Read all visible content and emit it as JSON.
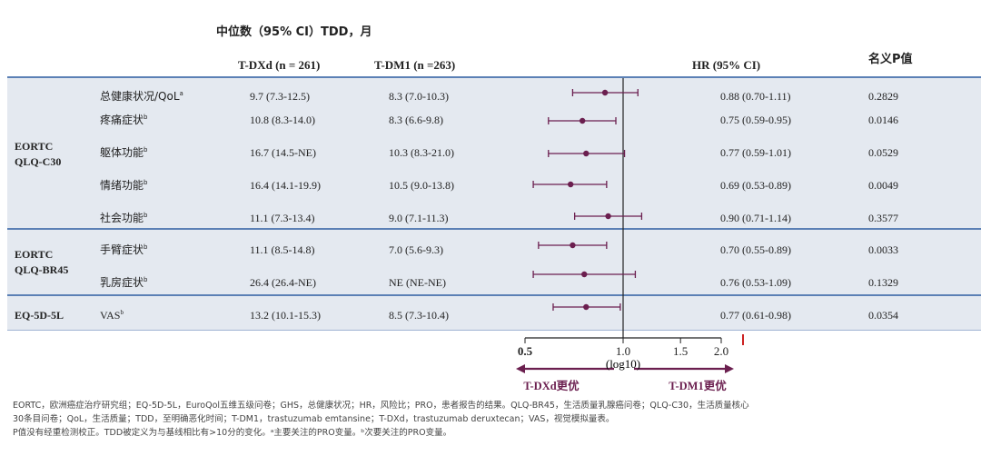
{
  "title": "中位数（95% CI）TDD，月",
  "columns": {
    "tdxd": "T-DXd (n = 261)",
    "tdm1": "T-DM1 (n =263)",
    "hr": "HR (95% CI)",
    "p": "名义P值"
  },
  "sections": [
    {
      "name_line1": "EORTC",
      "name_line2": "QLQ-C30"
    },
    {
      "name_line1": "EORTC",
      "name_line2": "QLQ-BR45"
    },
    {
      "name_line1": "EQ-5D-5L",
      "name_line2": ""
    }
  ],
  "rows": [
    {
      "label": "总健康状况/QoL",
      "sup": "a",
      "tdxd": "9.7 (7.3-12.5)",
      "tdm1": "8.3 (7.0-10.3)",
      "hr_text": "0.88 (0.70-1.11)",
      "p": "0.2829"
    },
    {
      "label": "疼痛症状",
      "sup": "b",
      "tdxd": "10.8 (8.3-14.0)",
      "tdm1": "8.3 (6.6-9.8)",
      "hr_text": "0.75 (0.59-0.95)",
      "p": "0.0146"
    },
    {
      "label": "躯体功能",
      "sup": "b",
      "tdxd": "16.7 (14.5-NE)",
      "tdm1": "10.3 (8.3-21.0)",
      "hr_text": "0.77 (0.59-1.01)",
      "p": "0.0529"
    },
    {
      "label": "情绪功能",
      "sup": "b",
      "tdxd": "16.4 (14.1-19.9)",
      "tdm1": "10.5 (9.0-13.8)",
      "hr_text": "0.69 (0.53-0.89)",
      "p": "0.0049"
    },
    {
      "label": "社会功能",
      "sup": "b",
      "tdxd": "11.1 (7.3-13.4)",
      "tdm1": "9.0 (7.1-11.3)",
      "hr_text": "0.90 (0.71-1.14)",
      "p": "0.3577"
    },
    {
      "label": "手臂症状",
      "sup": "b",
      "tdxd": "11.1 (8.5-14.8)",
      "tdm1": "7.0 (5.6-9.3)",
      "hr_text": "0.70 (0.55-0.89)",
      "p": "0.0033"
    },
    {
      "label": "乳房症状",
      "sup": "b",
      "tdxd": "26.4 (26.4-NE)",
      "tdm1": "NE (NE-NE)",
      "hr_text": "0.76 (0.53-1.09)",
      "p": "0.1329"
    },
    {
      "label": "VAS",
      "sup": "b",
      "tdxd": "13.2 (10.1-15.3)",
      "tdm1": "8.5 (7.3-10.4)",
      "hr_text": "0.77 (0.61-0.98)",
      "p": "0.0354"
    }
  ],
  "chart_data": {
    "type": "forest",
    "xscale": "log10",
    "xlim": [
      0.5,
      2.0
    ],
    "reference_line": 1.0,
    "ticks": [
      "0.5",
      "1.0",
      "1.5",
      "2.0"
    ],
    "tick_values": [
      0.5,
      1.0,
      1.5,
      2.0
    ],
    "xlabel": "(log10)",
    "favors_left": "T-DXd更优",
    "favors_right": "T-DM1更优",
    "points": [
      {
        "label": "总健康状况/QoL",
        "hr": 0.88,
        "lo": 0.7,
        "hi": 1.11
      },
      {
        "label": "疼痛症状",
        "hr": 0.75,
        "lo": 0.59,
        "hi": 0.95
      },
      {
        "label": "躯体功能",
        "hr": 0.77,
        "lo": 0.59,
        "hi": 1.01
      },
      {
        "label": "情绪功能",
        "hr": 0.69,
        "lo": 0.53,
        "hi": 0.89
      },
      {
        "label": "社会功能",
        "hr": 0.9,
        "lo": 0.71,
        "hi": 1.14
      },
      {
        "label": "手臂症状",
        "hr": 0.7,
        "lo": 0.55,
        "hi": 0.89
      },
      {
        "label": "乳房症状",
        "hr": 0.76,
        "lo": 0.53,
        "hi": 1.09
      },
      {
        "label": "VAS",
        "hr": 0.77,
        "lo": 0.61,
        "hi": 0.98
      }
    ],
    "colors": {
      "marker": "#6b1f4f",
      "axis": "#222222",
      "arrow": "#6b1f4f",
      "tick_mark": "#cc2222"
    }
  },
  "footnotes": [
    "EORTC，欧洲癌症治疗研究组；EQ-5D-5L，EuroQol五维五级问卷；GHS，总健康状况；HR，风险比；PRO，患者报告的结果。QLQ-BR45，生活质量乳腺癌问卷；QLQ-C30，生活质量核心",
    "30条目问卷；QoL，生活质量；TDD，至明确恶化时间；T-DM1，trastuzumab emtansine；T-DXd，trastuzumab deruxtecan；VAS，视觉模拟量表。",
    "P值没有经重检测校正。TDD被定义为与基线相比有>10分的变化。ᵃ主要关注的PRO变量。ᵇ次要关注的PRO变量。"
  ]
}
